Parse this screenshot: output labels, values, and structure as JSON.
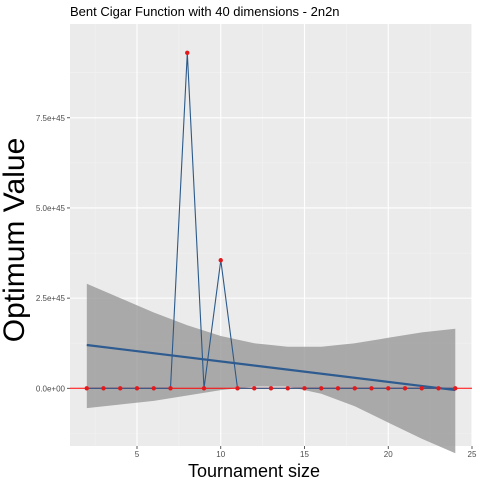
{
  "chart_data": {
    "type": "line",
    "title": "Bent Cigar Function with 40 dimensions -  2n2n",
    "xlabel": "Tournament size",
    "ylabel": "Optimum Value",
    "xlim": [
      1,
      25
    ],
    "ylim": [
      -1.6e+45,
      1.01e+46
    ],
    "x_ticks": [
      5,
      10,
      15,
      20,
      25
    ],
    "x_tick_labels": [
      "5",
      "10",
      "15",
      "20",
      "25"
    ],
    "y_ticks": [
      0,
      2.5e+45,
      5e+45,
      7.5e+45
    ],
    "y_tick_labels": [
      "0.0e+00",
      "2.5e+45",
      "5.0e+45",
      "7.5e+45"
    ],
    "grid": true,
    "series": [
      {
        "x": [
          2,
          3,
          4,
          5,
          6,
          7,
          8,
          9,
          10,
          11,
          12,
          13,
          14,
          15,
          16,
          17,
          18,
          19,
          20,
          21,
          22,
          23,
          24
        ],
        "values": [
          0,
          0,
          0,
          0,
          0,
          0,
          9.3e+45,
          0,
          3.55e+45,
          0,
          0,
          0,
          0,
          0,
          0,
          0,
          0,
          0,
          0,
          0,
          0,
          0,
          0
        ]
      }
    ],
    "trend": {
      "x": [
        2,
        24
      ],
      "y": [
        1.2e+45,
        -5e+43
      ]
    },
    "confidence_band": {
      "x": [
        2,
        4,
        6,
        8,
        10,
        12,
        14,
        16,
        18,
        20,
        22,
        24
      ],
      "upper": [
        2.9e+45,
        2.5e+45,
        2.1e+45,
        1.75e+45,
        1.45e+45,
        1.25e+45,
        1.15e+45,
        1.15e+45,
        1.25e+45,
        1.4e+45,
        1.55e+45,
        1.65e+45
      ],
      "lower": [
        -5.5e+44,
        -4.5e+44,
        -3.5e+44,
        -2e+44,
        -5e+43,
        5e+43,
        5e+43,
        -1.5e+44,
        -5e+44,
        -9.5e+44,
        -1.4e+45,
        -1.8e+45
      ]
    },
    "hline": 0,
    "colors": {
      "panel": "#ebebeb",
      "grid_major": "#ffffff",
      "grid_minor": "#f2f2f2",
      "series_line": "#2b5a8a",
      "points": "#e31a1c",
      "hline": "#ff0000",
      "trend": "#2e5b90",
      "band": "#999999"
    }
  }
}
